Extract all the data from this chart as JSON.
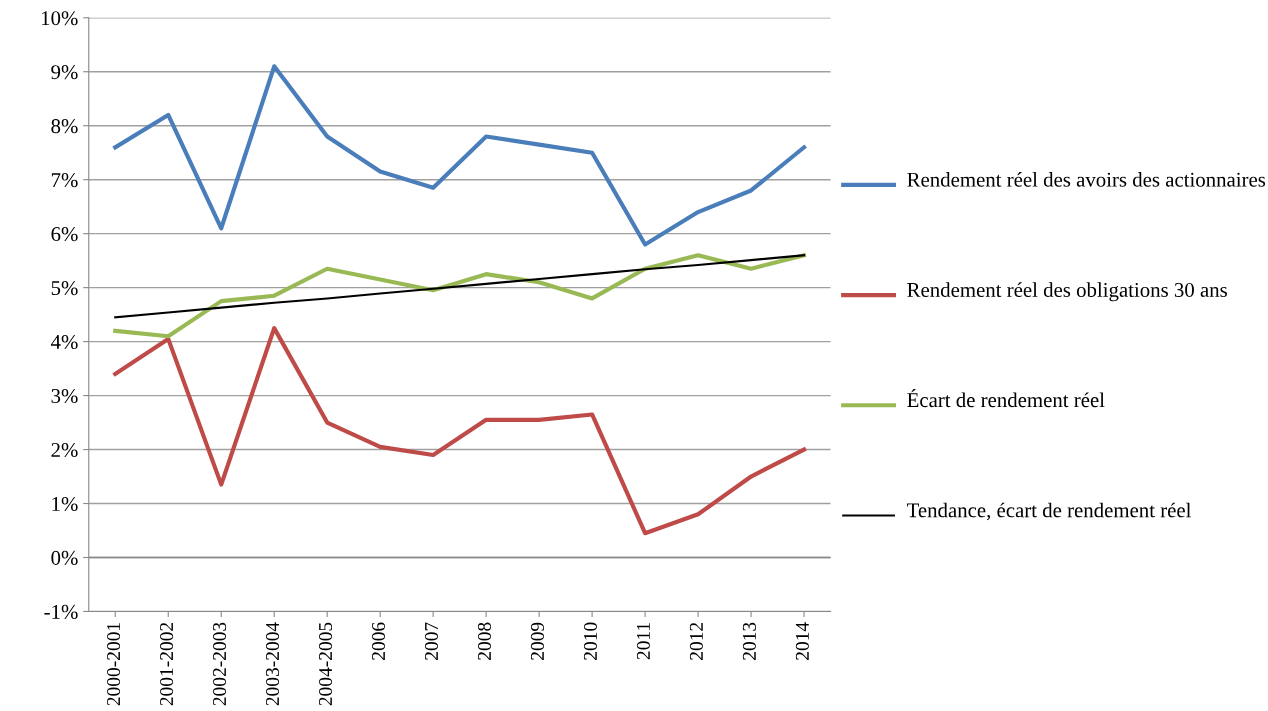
{
  "chart_data": {
    "type": "line",
    "categories": [
      "2000-2001",
      "2001-2002",
      "2002-2003",
      "2003-2004",
      "2004-2005",
      "2006",
      "2007",
      "2008",
      "2009",
      "2010",
      "2011",
      "2012",
      "2013",
      "2014"
    ],
    "series": [
      {
        "name": "Rendement réel des avoirs des actionnaires",
        "color": "#4a7ebb",
        "values": [
          7.6,
          8.2,
          6.1,
          9.1,
          7.8,
          7.15,
          6.85,
          7.8,
          7.65,
          7.5,
          5.8,
          6.4,
          6.8,
          7.6
        ]
      },
      {
        "name": "Rendement réel des obligations 30 ans",
        "color": "#be4b48",
        "values": [
          3.4,
          4.05,
          1.35,
          4.25,
          2.5,
          2.05,
          1.9,
          2.55,
          2.55,
          2.65,
          0.45,
          0.8,
          1.5,
          2.0
        ]
      },
      {
        "name": "Écart de rendement réel",
        "color": "#98b954",
        "values": [
          4.2,
          4.1,
          4.75,
          4.85,
          5.35,
          5.15,
          4.95,
          5.25,
          5.1,
          4.8,
          5.35,
          5.6,
          5.35,
          5.6
        ]
      },
      {
        "name": "Tendance, écart de rendement réel",
        "color": "#000000",
        "values": [
          4.45,
          4.54,
          4.63,
          4.72,
          4.8,
          4.89,
          4.98,
          5.07,
          5.16,
          5.25,
          5.34,
          5.42,
          5.51,
          5.6
        ]
      }
    ],
    "ylim": [
      -1,
      10
    ],
    "yticks": [
      {
        "value": -1,
        "label": "-1%"
      },
      {
        "value": 0,
        "label": "0%"
      },
      {
        "value": 1,
        "label": "1%"
      },
      {
        "value": 2,
        "label": "2%"
      },
      {
        "value": 3,
        "label": "3%"
      },
      {
        "value": 4,
        "label": "4%"
      },
      {
        "value": 5,
        "label": "5%"
      },
      {
        "value": 6,
        "label": "6%"
      },
      {
        "value": 7,
        "label": "7%"
      },
      {
        "value": 8,
        "label": "8%"
      },
      {
        "value": 9,
        "label": "9%"
      },
      {
        "value": 10,
        "label": "10%"
      }
    ],
    "grid": "y",
    "legend": "right",
    "marker": "none",
    "line_style": "solid"
  }
}
